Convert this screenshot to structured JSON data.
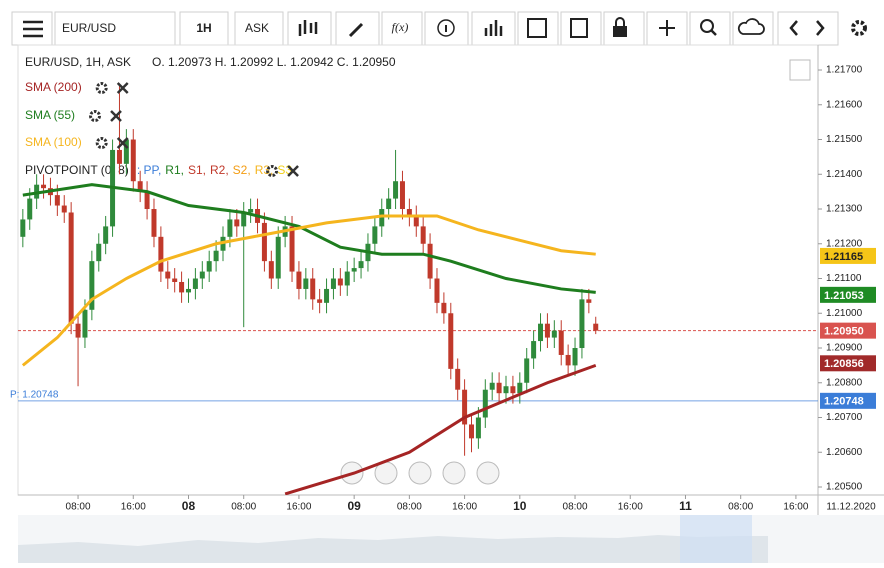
{
  "toolbar": {
    "symbol": "EUR/USD",
    "interval": "1H",
    "price_side": "ASK",
    "function_button": "f(x)"
  },
  "chart_data": {
    "type": "candlestick",
    "header": "EUR/USD, 1H, ASK",
    "ohlc_label": "O. 1.20973 H. 1.20992 L. 1.20942 C. 1.20950",
    "up_color": "#2f8a3b",
    "down_color": "#c0392b",
    "x": [
      0,
      1,
      2,
      3,
      4,
      5,
      6,
      7,
      8,
      9,
      10,
      11,
      12,
      13,
      14,
      15,
      16,
      17,
      18,
      19,
      20,
      21,
      22,
      23,
      24,
      25,
      26,
      27,
      28,
      29,
      30,
      31,
      32,
      33,
      34,
      35,
      36,
      37,
      38,
      39,
      40,
      41,
      42,
      43,
      44,
      45,
      46,
      47,
      48,
      49,
      50,
      51,
      52,
      53,
      54,
      55,
      56,
      57,
      58,
      59,
      60,
      61,
      62,
      63,
      64,
      65,
      66,
      67,
      68,
      69,
      70,
      71,
      72,
      73,
      74,
      75,
      76,
      77,
      78,
      79,
      80,
      81,
      82,
      83
    ],
    "open": [
      1.2122,
      1.2127,
      1.2133,
      1.2137,
      1.2136,
      1.2134,
      1.2131,
      1.2129,
      1.2097,
      1.2093,
      1.2101,
      1.2115,
      1.212,
      1.2125,
      1.2147,
      1.2143,
      1.215,
      1.2138,
      1.2135,
      1.213,
      1.2122,
      1.2112,
      1.211,
      1.2109,
      1.2106,
      1.2107,
      1.211,
      1.2112,
      1.2115,
      1.2118,
      1.2122,
      1.2127,
      1.2125,
      1.2129,
      1.213,
      1.2126,
      1.2115,
      1.211,
      1.2122,
      1.2125,
      1.2112,
      1.2107,
      1.211,
      1.2104,
      1.2103,
      1.2107,
      1.211,
      1.2108,
      1.2112,
      1.2113,
      1.2115,
      1.212,
      1.2125,
      1.213,
      1.2133,
      1.2138,
      1.213,
      1.2128,
      1.2125,
      1.212,
      1.211,
      1.2103,
      1.21,
      1.2084,
      1.2078,
      1.2068,
      1.2064,
      1.207,
      1.2078,
      1.208,
      1.2077,
      1.2079,
      1.2077,
      1.208,
      1.2087,
      1.2092,
      1.2097,
      1.2093,
      1.2095,
      1.2088,
      1.2085,
      1.209,
      1.2104,
      1.2097
    ],
    "high": [
      1.213,
      1.2136,
      1.214,
      1.214,
      1.2139,
      1.2137,
      1.2134,
      1.2132,
      1.21,
      1.2104,
      1.2118,
      1.2123,
      1.2128,
      1.215,
      1.2166,
      1.2153,
      1.2153,
      1.2141,
      1.2138,
      1.2133,
      1.2125,
      1.2115,
      1.2113,
      1.2112,
      1.211,
      1.2113,
      1.2115,
      1.2118,
      1.2121,
      1.2125,
      1.213,
      1.213,
      1.2132,
      1.2133,
      1.2133,
      1.2129,
      1.2118,
      1.2125,
      1.2128,
      1.2128,
      1.2115,
      1.2113,
      1.2113,
      1.2107,
      1.211,
      1.2113,
      1.2113,
      1.2115,
      1.2116,
      1.2118,
      1.2123,
      1.2128,
      1.2133,
      1.2136,
      1.2147,
      1.2141,
      1.2133,
      1.2131,
      1.2128,
      1.2123,
      1.2113,
      1.2106,
      1.2103,
      1.2087,
      1.2081,
      1.2071,
      1.2073,
      1.2081,
      1.2083,
      1.2083,
      1.2082,
      1.2082,
      1.2083,
      1.209,
      1.2095,
      1.21,
      1.21,
      1.2098,
      1.2098,
      1.2091,
      1.2093,
      1.2107,
      1.2107,
      1.2099
    ],
    "low": [
      1.2119,
      1.2124,
      1.213,
      1.2133,
      1.2131,
      1.2128,
      1.2126,
      1.2094,
      1.2079,
      1.209,
      1.2098,
      1.2112,
      1.2117,
      1.2122,
      1.214,
      1.214,
      1.2135,
      1.2132,
      1.2127,
      1.2119,
      1.2109,
      1.2107,
      1.2106,
      1.2103,
      1.2103,
      1.2104,
      1.2107,
      1.2109,
      1.2112,
      1.2115,
      1.2119,
      1.2122,
      1.2096,
      1.2126,
      1.2123,
      1.2112,
      1.2107,
      1.2107,
      1.2119,
      1.2109,
      1.2104,
      1.2104,
      1.2101,
      1.21,
      1.21,
      1.2104,
      1.2105,
      1.2105,
      1.2109,
      1.211,
      1.2112,
      1.2117,
      1.2122,
      1.2127,
      1.213,
      1.2127,
      1.2125,
      1.2122,
      1.2117,
      1.2107,
      1.21,
      1.2097,
      1.2081,
      1.2075,
      1.2059,
      1.206,
      1.2061,
      1.2067,
      1.2075,
      1.2074,
      1.2074,
      1.2074,
      1.2074,
      1.2077,
      1.2084,
      1.2089,
      1.209,
      1.209,
      1.2085,
      1.2082,
      1.2082,
      1.2087,
      1.21,
      1.2094
    ],
    "close": [
      1.2127,
      1.2133,
      1.2137,
      1.2136,
      1.2134,
      1.2131,
      1.2129,
      1.2097,
      1.2093,
      1.2101,
      1.2115,
      1.212,
      1.2125,
      1.2147,
      1.2143,
      1.215,
      1.2138,
      1.2135,
      1.213,
      1.2122,
      1.2112,
      1.211,
      1.2109,
      1.2106,
      1.2107,
      1.211,
      1.2112,
      1.2115,
      1.2118,
      1.2122,
      1.2127,
      1.2125,
      1.2129,
      1.213,
      1.2126,
      1.2115,
      1.211,
      1.2122,
      1.2125,
      1.2112,
      1.2107,
      1.211,
      1.2104,
      1.2103,
      1.2107,
      1.211,
      1.2108,
      1.2112,
      1.2113,
      1.2115,
      1.212,
      1.2125,
      1.213,
      1.2133,
      1.2138,
      1.213,
      1.2128,
      1.2125,
      1.212,
      1.211,
      1.2103,
      1.21,
      1.2084,
      1.2078,
      1.2068,
      1.2064,
      1.207,
      1.2078,
      1.208,
      1.2077,
      1.2079,
      1.2077,
      1.208,
      1.2087,
      1.2092,
      1.2097,
      1.2093,
      1.2095,
      1.2088,
      1.2085,
      1.209,
      1.2104,
      1.2103,
      1.2095
    ],
    "series": [
      {
        "name": "SMA (200)",
        "color": "#a52424",
        "x": [
          38,
          48,
          56,
          64,
          70,
          76,
          83
        ],
        "values": [
          1.2048,
          1.2054,
          1.206,
          1.207,
          1.2075,
          1.208,
          1.2085
        ]
      },
      {
        "name": "SMA (55)",
        "color": "#1e7d1e",
        "x": [
          0,
          10,
          18,
          24,
          32,
          40,
          46,
          52,
          58,
          62,
          70,
          78,
          83
        ],
        "values": [
          1.2134,
          1.2137,
          1.2135,
          1.2131,
          1.2129,
          1.2125,
          1.2119,
          1.2117,
          1.2117,
          1.2115,
          1.211,
          1.2107,
          1.2106
        ]
      },
      {
        "name": "SMA (100)",
        "color": "#f5b51e",
        "x": [
          0,
          5,
          10,
          15,
          20,
          28,
          36,
          44,
          52,
          60,
          66,
          72,
          78,
          83
        ],
        "values": [
          1.2085,
          1.2093,
          1.2104,
          1.211,
          1.2115,
          1.212,
          1.2123,
          1.2126,
          1.2128,
          1.2128,
          1.2124,
          1.2121,
          1.2118,
          1.2117
        ]
      }
    ],
    "indicator": {
      "name": "PIVOTPOINT (0, 8)",
      "items": [
        {
          "label": ": PP,",
          "color": "#3b7dd8"
        },
        {
          "label": "R1,",
          "color": "#1e7d1e"
        },
        {
          "label": "S1,",
          "color": "#c0392b"
        },
        {
          "label": "R2,",
          "color": "#c0392b"
        },
        {
          "label": "S2,",
          "color": "#f39c12"
        },
        {
          "label": "R3,",
          "color": "#f5b51e"
        },
        {
          "label": "S3",
          "color": "#f1d016"
        }
      ]
    },
    "price_tags": [
      {
        "value": 1.21165,
        "label": "1.21165",
        "color": "#f5c518",
        "text_color": "#222"
      },
      {
        "value": 1.21053,
        "label": "1.21053",
        "color": "#1f8b24",
        "text_color": "#fff"
      },
      {
        "value": 1.2095,
        "label": "1.20950",
        "color": "#d9534f",
        "text_color": "#fff",
        "line": "dashed"
      },
      {
        "value": 1.20856,
        "label": "1.20856",
        "color": "#a12a2a",
        "text_color": "#fff"
      },
      {
        "value": 1.20748,
        "label": "1.20748",
        "color": "#3b7dd8",
        "text_color": "#fff",
        "line": "solid",
        "line_label": "P: 1.20748"
      }
    ],
    "xlim": [
      -0.7,
      115.2
    ],
    "xticks": [
      {
        "value": 8,
        "label": "08:00"
      },
      {
        "value": 16,
        "label": "16:00"
      },
      {
        "value": 24,
        "label": "08"
      },
      {
        "value": 32,
        "label": "08:00"
      },
      {
        "value": 40,
        "label": "16:00"
      },
      {
        "value": 48,
        "label": "09"
      },
      {
        "value": 56,
        "label": "08:00"
      },
      {
        "value": 64,
        "label": "16:00"
      },
      {
        "value": 72,
        "label": "10"
      },
      {
        "value": 80,
        "label": "08:00"
      },
      {
        "value": 88,
        "label": "16:00"
      },
      {
        "value": 96,
        "label": "11"
      },
      {
        "value": 104,
        "label": "08:00"
      },
      {
        "value": 112,
        "label": "16:00"
      }
    ],
    "date_label": "11.12.2020",
    "ylim": [
      1.20477,
      1.21772
    ],
    "yticks": [
      {
        "value": 1.205,
        "label": "1.20500"
      },
      {
        "value": 1.206,
        "label": "1.20600"
      },
      {
        "value": 1.207,
        "label": "1.20700"
      },
      {
        "value": 1.208,
        "label": "1.20800"
      },
      {
        "value": 1.209,
        "label": "1.20900"
      },
      {
        "value": 1.21,
        "label": "1.21000"
      },
      {
        "value": 1.211,
        "label": "1.21100"
      },
      {
        "value": 1.212,
        "label": "1.21200"
      },
      {
        "value": 1.213,
        "label": "1.21300"
      },
      {
        "value": 1.214,
        "label": "1.21400"
      },
      {
        "value": 1.215,
        "label": "1.21500"
      },
      {
        "value": 1.216,
        "label": "1.21600"
      },
      {
        "value": 1.217,
        "label": "1.21700"
      }
    ]
  }
}
